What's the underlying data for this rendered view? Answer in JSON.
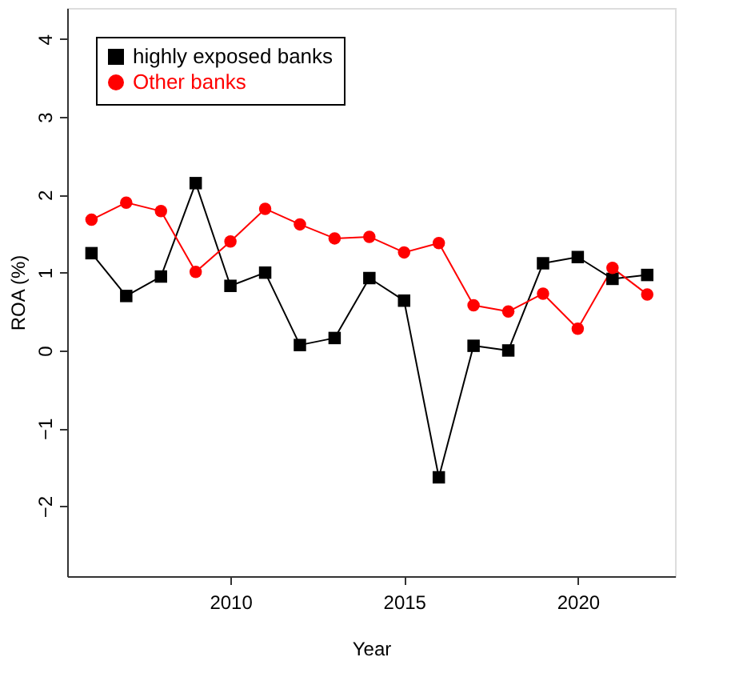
{
  "chart_data": {
    "type": "line",
    "xlabel": "Year",
    "ylabel": "ROA (%)",
    "x": [
      2006,
      2007,
      2008,
      2009,
      2010,
      2011,
      2012,
      2013,
      2014,
      2015,
      2016,
      2017,
      2018,
      2019,
      2020,
      2021,
      2022
    ],
    "series": [
      {
        "name": "highly exposed banks",
        "color": "#000000",
        "marker": "square",
        "values": [
          1.25,
          0.7,
          0.95,
          2.15,
          0.83,
          1.0,
          0.07,
          0.16,
          0.93,
          0.64,
          -1.63,
          0.06,
          0.0,
          1.12,
          1.2,
          0.92,
          0.97
        ]
      },
      {
        "name": "Other banks",
        "color": "#ff0000",
        "marker": "circle",
        "values": [
          1.68,
          1.9,
          1.79,
          1.01,
          1.4,
          1.82,
          1.62,
          1.44,
          1.46,
          1.26,
          1.38,
          0.58,
          0.5,
          0.73,
          0.28,
          1.06,
          0.72
        ]
      }
    ],
    "xlim": [
      2005.3,
      2022.8
    ],
    "xticks": [
      2010,
      2015,
      2020
    ],
    "ylim": [
      -2.9,
      4.4
    ],
    "yticks": [
      -2,
      -1,
      0,
      1,
      2,
      3,
      4
    ],
    "grid": false,
    "legend": "top left"
  }
}
